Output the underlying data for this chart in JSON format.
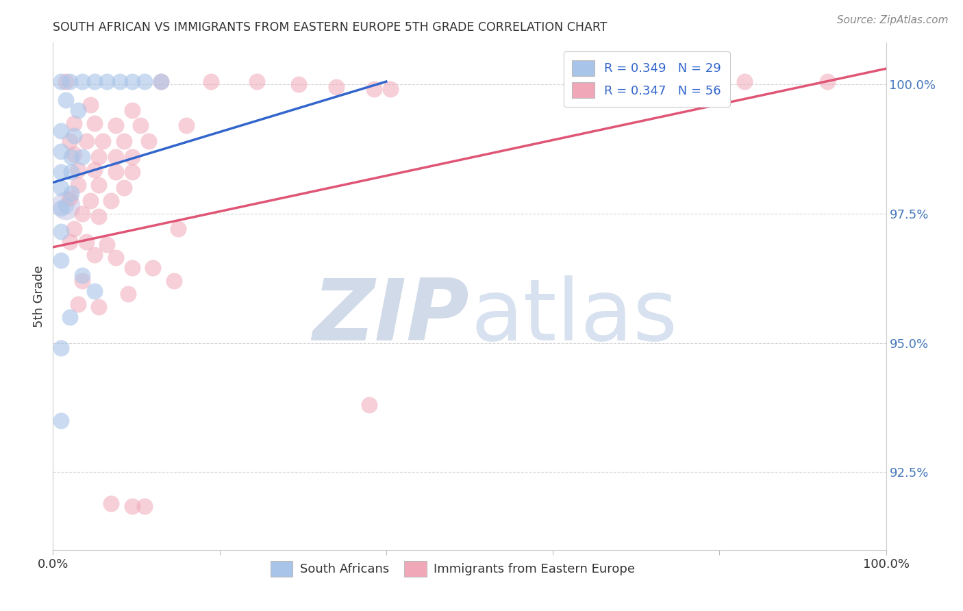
{
  "title": "SOUTH AFRICAN VS IMMIGRANTS FROM EASTERN EUROPE 5TH GRADE CORRELATION CHART",
  "source": "Source: ZipAtlas.com",
  "ylabel": "5th Grade",
  "xlim": [
    0.0,
    100.0
  ],
  "ylim": [
    91.0,
    100.8
  ],
  "yticks": [
    92.5,
    95.0,
    97.5,
    100.0
  ],
  "xticks": [
    0.0,
    20.0,
    40.0,
    60.0,
    80.0,
    100.0
  ],
  "blue_R": "0.349",
  "blue_N": "29",
  "pink_R": "0.347",
  "pink_N": "56",
  "blue_color": "#a8c4e8",
  "pink_color": "#f0a8b8",
  "blue_line_color": "#3366cc",
  "pink_line_color": "#e05575",
  "blue_scatter": [
    [
      1.0,
      100.05
    ],
    [
      2.0,
      100.05
    ],
    [
      3.5,
      100.05
    ],
    [
      5.0,
      100.05
    ],
    [
      6.5,
      100.05
    ],
    [
      8.0,
      100.05
    ],
    [
      9.5,
      100.05
    ],
    [
      11.0,
      100.05
    ],
    [
      13.0,
      100.05
    ],
    [
      1.5,
      99.7
    ],
    [
      3.0,
      99.5
    ],
    [
      1.0,
      99.1
    ],
    [
      2.5,
      99.0
    ],
    [
      1.0,
      98.7
    ],
    [
      2.2,
      98.6
    ],
    [
      3.5,
      98.6
    ],
    [
      1.0,
      98.3
    ],
    [
      2.2,
      98.3
    ],
    [
      1.0,
      98.0
    ],
    [
      2.2,
      97.9
    ],
    [
      1.0,
      97.6
    ],
    [
      1.0,
      97.15
    ],
    [
      1.0,
      96.6
    ],
    [
      3.5,
      96.3
    ],
    [
      5.0,
      96.0
    ],
    [
      2.0,
      95.5
    ],
    [
      1.0,
      94.9
    ],
    [
      1.0,
      93.5
    ]
  ],
  "pink_scatter": [
    [
      1.5,
      100.05
    ],
    [
      13.0,
      100.05
    ],
    [
      19.0,
      100.05
    ],
    [
      24.5,
      100.05
    ],
    [
      29.5,
      100.0
    ],
    [
      34.0,
      99.95
    ],
    [
      38.5,
      99.9
    ],
    [
      40.5,
      99.9
    ],
    [
      4.5,
      99.6
    ],
    [
      9.5,
      99.5
    ],
    [
      2.5,
      99.25
    ],
    [
      5.0,
      99.25
    ],
    [
      7.5,
      99.2
    ],
    [
      10.5,
      99.2
    ],
    [
      16.0,
      99.2
    ],
    [
      2.0,
      98.9
    ],
    [
      4.0,
      98.9
    ],
    [
      6.0,
      98.9
    ],
    [
      8.5,
      98.9
    ],
    [
      11.5,
      98.9
    ],
    [
      2.5,
      98.65
    ],
    [
      5.5,
      98.6
    ],
    [
      7.5,
      98.6
    ],
    [
      9.5,
      98.6
    ],
    [
      3.0,
      98.35
    ],
    [
      5.0,
      98.35
    ],
    [
      7.5,
      98.3
    ],
    [
      9.5,
      98.3
    ],
    [
      3.0,
      98.05
    ],
    [
      5.5,
      98.05
    ],
    [
      8.5,
      98.0
    ],
    [
      2.0,
      97.8
    ],
    [
      4.5,
      97.75
    ],
    [
      7.0,
      97.75
    ],
    [
      3.5,
      97.5
    ],
    [
      5.5,
      97.45
    ],
    [
      2.5,
      97.2
    ],
    [
      15.0,
      97.2
    ],
    [
      2.0,
      96.95
    ],
    [
      4.0,
      96.95
    ],
    [
      6.5,
      96.9
    ],
    [
      5.0,
      96.7
    ],
    [
      7.5,
      96.65
    ],
    [
      9.5,
      96.45
    ],
    [
      12.0,
      96.45
    ],
    [
      3.5,
      96.2
    ],
    [
      14.5,
      96.2
    ],
    [
      9.0,
      95.95
    ],
    [
      3.0,
      95.75
    ],
    [
      5.5,
      95.7
    ],
    [
      38.0,
      93.8
    ],
    [
      7.0,
      91.9
    ],
    [
      9.5,
      91.85
    ],
    [
      11.0,
      91.85
    ],
    [
      83.0,
      100.05
    ],
    [
      93.0,
      100.05
    ]
  ],
  "blue_line": [
    [
      0.0,
      98.1
    ],
    [
      40.0,
      100.05
    ]
  ],
  "pink_line": [
    [
      0.0,
      96.85
    ],
    [
      100.0,
      100.3
    ]
  ],
  "big_blue_circle": [
    1.5,
    97.65
  ],
  "watermark_zip_color": "#d0dae8",
  "watermark_atlas_color": "#c8d5ea"
}
